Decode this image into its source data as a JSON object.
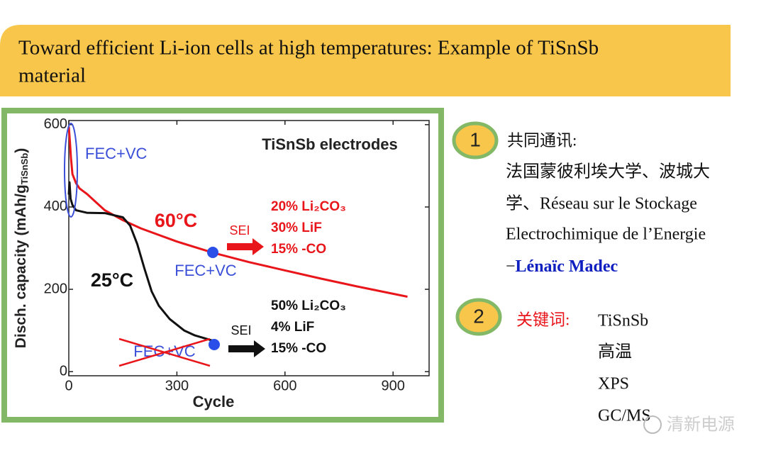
{
  "header": {
    "title_lines": [
      "Toward efficient Li-ion cells at high temperatures: Example of TiSnSb",
      "material"
    ]
  },
  "chart_data": {
    "type": "line",
    "title": "TiSnSb electrodes",
    "x_label": "Cycle",
    "y_label": [
      "Disch. capacity (mAh/g",
      "TiSnSb",
      ")"
    ],
    "xlim": [
      0,
      1000
    ],
    "ylim": [
      -10,
      610
    ],
    "xticks": [
      0,
      300,
      600,
      900
    ],
    "yticks": [
      0,
      200,
      400,
      600
    ],
    "series": [
      {
        "name": "60°C",
        "color": "#e8161b",
        "x": [
          0,
          3,
          6,
          10,
          20,
          30,
          50,
          100,
          150,
          200,
          300,
          400,
          500,
          600,
          700,
          800,
          940
        ],
        "values": [
          595,
          560,
          520,
          480,
          458,
          445,
          432,
          392,
          368,
          348,
          316,
          289,
          266,
          246,
          226,
          207,
          182
        ]
      },
      {
        "name": "25°C",
        "color": "#111111",
        "x": [
          0,
          2,
          5,
          10,
          20,
          50,
          100,
          150,
          170,
          190,
          210,
          230,
          250,
          280,
          320,
          350,
          400
        ],
        "values": [
          430,
          460,
          420,
          405,
          392,
          386,
          385,
          375,
          355,
          310,
          250,
          195,
          160,
          128,
          100,
          88,
          75
        ]
      }
    ],
    "annotations": [
      {
        "text": "FEC+VC",
        "color": "#3b4fd8"
      },
      {
        "text": "SEI",
        "color": "#e8161b"
      },
      {
        "text": "20% Li₂CO₃",
        "color": "#e8161b"
      },
      {
        "text": "30% LiF",
        "color": "#e8161b"
      },
      {
        "text": "15% -CO",
        "color": "#e8161b"
      },
      {
        "text": "FEC+VC",
        "color": "#3b4fd8"
      },
      {
        "text": "50% Li₂CO₃",
        "color": "#111111"
      },
      {
        "text": "4% LiF",
        "color": "#111111"
      },
      {
        "text": "15% -CO",
        "color": "#111111"
      },
      {
        "text": "SEI",
        "color": "#111111"
      },
      {
        "text": "FEC+VC",
        "color": "#3b4fd8"
      }
    ]
  },
  "notes": {
    "item1": {
      "number": "1",
      "heading": "共同通讯:",
      "lines": [
        "法国蒙彼利埃大学、波城大",
        "学、Réseau sur le Stockage",
        "Electrochimique de l’Energie"
      ],
      "author_prefix": "−",
      "author": "Lénaïc Madec"
    },
    "item2": {
      "number": "2",
      "heading": "关键词:",
      "keywords": [
        "TiSnSb",
        "高温",
        "XPS",
        "GC/MS"
      ]
    }
  },
  "watermark": "清新电源"
}
